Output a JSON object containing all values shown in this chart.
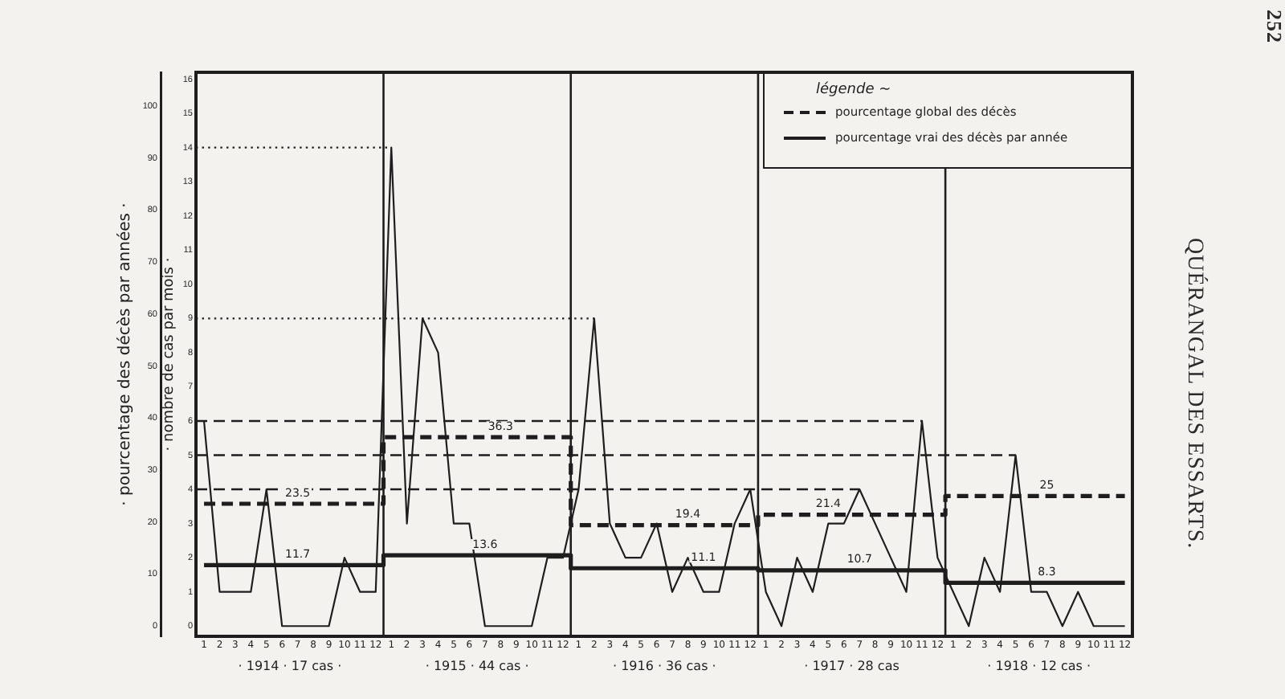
{
  "chart_data": {
    "type": "line",
    "ylabel": "· nombre de cas par mois ·",
    "y2label": "· pourcentage des décès par années ·",
    "legend_title": "légende ~",
    "legend": "top right",
    "marker": "none",
    "x": [
      "1914-01",
      "1914-02",
      "1914-03",
      "1914-04",
      "1914-05",
      "1914-06",
      "1914-07",
      "1914-08",
      "1914-09",
      "1914-10",
      "1914-11",
      "1914-12",
      "1915-01",
      "1915-02",
      "1915-03",
      "1915-04",
      "1915-05",
      "1915-06",
      "1915-07",
      "1915-08",
      "1915-09",
      "1915-10",
      "1915-11",
      "1915-12",
      "1916-01",
      "1916-02",
      "1916-03",
      "1916-04",
      "1916-05",
      "1916-06",
      "1916-07",
      "1916-08",
      "1916-09",
      "1916-10",
      "1916-11",
      "1916-12",
      "1917-01",
      "1917-02",
      "1917-03",
      "1917-04",
      "1917-05",
      "1917-06",
      "1917-07",
      "1917-08",
      "1917-09",
      "1917-10",
      "1917-11",
      "1917-12",
      "1918-01",
      "1918-02",
      "1918-03",
      "1918-04",
      "1918-05",
      "1918-06",
      "1918-07",
      "1918-08",
      "1918-09",
      "1918-10",
      "1918-11",
      "1918-12"
    ],
    "xlim": [
      "1913-12-16",
      "1918-12-16"
    ],
    "xticks": [
      {
        "value": "1914-01",
        "label": "1"
      },
      {
        "value": "1914-02",
        "label": "2"
      },
      {
        "value": "1914-03",
        "label": "3"
      },
      {
        "value": "1914-04",
        "label": "4"
      },
      {
        "value": "1914-05",
        "label": "5"
      },
      {
        "value": "1914-06",
        "label": "6"
      },
      {
        "value": "1914-07",
        "label": "7"
      },
      {
        "value": "1914-08",
        "label": "8"
      },
      {
        "value": "1914-09",
        "label": "9"
      },
      {
        "value": "1914-10",
        "label": "10"
      },
      {
        "value": "1914-11",
        "label": "11"
      },
      {
        "value": "1914-12",
        "label": "12"
      },
      {
        "value": "1915-01",
        "label": "1"
      },
      {
        "value": "1915-02",
        "label": "2"
      },
      {
        "value": "1915-03",
        "label": "3"
      },
      {
        "value": "1915-04",
        "label": "4"
      },
      {
        "value": "1915-05",
        "label": "5"
      },
      {
        "value": "1915-06",
        "label": "6"
      },
      {
        "value": "1915-07",
        "label": "7"
      },
      {
        "value": "1915-08",
        "label": "8"
      },
      {
        "value": "1915-09",
        "label": "9"
      },
      {
        "value": "1915-10",
        "label": "10"
      },
      {
        "value": "1915-11",
        "label": "11"
      },
      {
        "value": "1915-12",
        "label": "12"
      },
      {
        "value": "1916-01",
        "label": "1"
      },
      {
        "value": "1916-02",
        "label": "2"
      },
      {
        "value": "1916-03",
        "label": "3"
      },
      {
        "value": "1916-04",
        "label": "4"
      },
      {
        "value": "1916-05",
        "label": "5"
      },
      {
        "value": "1916-06",
        "label": "6"
      },
      {
        "value": "1916-07",
        "label": "7"
      },
      {
        "value": "1916-08",
        "label": "8"
      },
      {
        "value": "1916-09",
        "label": "9"
      },
      {
        "value": "1916-10",
        "label": "10"
      },
      {
        "value": "1916-11",
        "label": "11"
      },
      {
        "value": "1916-12",
        "label": "12"
      },
      {
        "value": "1917-01",
        "label": "1"
      },
      {
        "value": "1917-02",
        "label": "2"
      },
      {
        "value": "1917-03",
        "label": "3"
      },
      {
        "value": "1917-04",
        "label": "4"
      },
      {
        "value": "1917-05",
        "label": "5"
      },
      {
        "value": "1917-06",
        "label": "6"
      },
      {
        "value": "1917-07",
        "label": "7"
      },
      {
        "value": "1917-08",
        "label": "8"
      },
      {
        "value": "1917-09",
        "label": "9"
      },
      {
        "value": "1917-10",
        "label": "10"
      },
      {
        "value": "1917-11",
        "label": "11"
      },
      {
        "value": "1917-12",
        "label": "12"
      },
      {
        "value": "1918-01",
        "label": "1"
      },
      {
        "value": "1918-02",
        "label": "2"
      },
      {
        "value": "1918-03",
        "label": "3"
      },
      {
        "value": "1918-04",
        "label": "4"
      },
      {
        "value": "1918-05",
        "label": "5"
      },
      {
        "value": "1918-06",
        "label": "6"
      },
      {
        "value": "1918-07",
        "label": "7"
      },
      {
        "value": "1918-08",
        "label": "8"
      },
      {
        "value": "1918-09",
        "label": "9"
      },
      {
        "value": "1918-10",
        "label": "10"
      },
      {
        "value": "1918-11",
        "label": "11"
      },
      {
        "value": "1918-12",
        "label": "12"
      }
    ],
    "series": [
      {
        "type": "line",
        "color": "#1e1e1e",
        "line_style": "solid",
        "values": [
          6,
          1,
          1,
          1,
          4,
          0,
          0,
          0,
          0,
          2,
          1,
          1,
          14,
          3,
          9,
          8,
          3,
          3,
          0,
          0,
          0,
          0,
          2,
          2,
          4,
          9,
          3,
          2,
          2,
          3,
          1,
          2,
          1,
          1,
          3,
          4,
          1,
          0,
          2,
          1,
          3,
          3,
          4,
          3,
          2,
          1,
          6,
          2,
          1,
          0,
          2,
          1,
          5,
          1,
          1,
          0,
          1,
          0,
          0,
          0
        ]
      },
      {
        "type": "step",
        "name": "pourcentage global des décès",
        "color": "#1e1e1e",
        "axis": "y2",
        "line_style": "dashed",
        "values": [
          23.5,
          23.5,
          23.5,
          23.5,
          23.5,
          23.5,
          23.5,
          23.5,
          23.5,
          23.5,
          23.5,
          23.5,
          36.3,
          36.3,
          36.3,
          36.3,
          36.3,
          36.3,
          36.3,
          36.3,
          36.3,
          36.3,
          36.3,
          36.3,
          19.4,
          19.4,
          19.4,
          19.4,
          19.4,
          19.4,
          19.4,
          19.4,
          19.4,
          19.4,
          19.4,
          19.4,
          21.4,
          21.4,
          21.4,
          21.4,
          21.4,
          21.4,
          21.4,
          21.4,
          21.4,
          21.4,
          21.4,
          21.4,
          25,
          25,
          25,
          25,
          25,
          25,
          25,
          25,
          25,
          25,
          25,
          25
        ],
        "value_labels": [
          null,
          null,
          null,
          null,
          null,
          null,
          "23.5",
          null,
          null,
          null,
          null,
          null,
          null,
          null,
          null,
          null,
          null,
          null,
          null,
          "36.3",
          null,
          null,
          null,
          null,
          null,
          null,
          null,
          null,
          null,
          null,
          null,
          "19.4",
          null,
          null,
          null,
          null,
          null,
          null,
          null,
          null,
          "21.4",
          null,
          null,
          null,
          null,
          null,
          null,
          null,
          null,
          null,
          null,
          null,
          null,
          null,
          "25",
          null,
          null,
          null,
          null,
          null
        ]
      },
      {
        "type": "step",
        "name": "pourcentage vrai des décès par année",
        "color": "#1e1e1e",
        "axis": "y2",
        "line_style": "solid",
        "values": [
          11.7,
          11.7,
          11.7,
          11.7,
          11.7,
          11.7,
          11.7,
          11.7,
          11.7,
          11.7,
          11.7,
          11.7,
          13.6,
          13.6,
          13.6,
          13.6,
          13.6,
          13.6,
          13.6,
          13.6,
          13.6,
          13.6,
          13.6,
          13.6,
          11.1,
          11.1,
          11.1,
          11.1,
          11.1,
          11.1,
          11.1,
          11.1,
          11.1,
          11.1,
          11.1,
          11.1,
          10.7,
          10.7,
          10.7,
          10.7,
          10.7,
          10.7,
          10.7,
          10.7,
          10.7,
          10.7,
          10.7,
          10.7,
          8.3,
          8.3,
          8.3,
          8.3,
          8.3,
          8.3,
          8.3,
          8.3,
          8.3,
          8.3,
          8.3,
          8.3
        ],
        "value_labels": [
          null,
          null,
          null,
          null,
          null,
          null,
          "11.7",
          null,
          null,
          null,
          null,
          null,
          null,
          null,
          null,
          null,
          null,
          null,
          "13.6",
          null,
          null,
          null,
          null,
          null,
          null,
          null,
          null,
          null,
          null,
          null,
          null,
          null,
          "11.1",
          null,
          null,
          null,
          null,
          null,
          null,
          null,
          null,
          null,
          "10.7",
          null,
          null,
          null,
          null,
          null,
          null,
          null,
          null,
          null,
          null,
          null,
          "8.3",
          null,
          null,
          null,
          null,
          null
        ]
      }
    ],
    "ylim": [
      -0.3,
      16.2
    ],
    "yticks": [
      0,
      1,
      2,
      3,
      4,
      5,
      6,
      7,
      8,
      9,
      10,
      11,
      12,
      13,
      14,
      15,
      16
    ],
    "y2lim": [
      -2,
      106.5
    ],
    "y2ticks": [
      0,
      10,
      20,
      30,
      40,
      50,
      60,
      70,
      80,
      90,
      100
    ],
    "ref_lines": [
      {
        "axis": "y",
        "value": 14,
        "color": "#1e1e1e",
        "line_style": "dotted"
      },
      {
        "axis": "y",
        "value": 9,
        "color": "#1e1e1e",
        "line_style": "dotted"
      },
      {
        "axis": "y",
        "value": 6,
        "color": "#1e1e1e",
        "line_style": "dashed"
      },
      {
        "axis": "y",
        "value": 5,
        "color": "#1e1e1e",
        "line_style": "dashed"
      },
      {
        "axis": "y",
        "value": 4,
        "color": "#1e1e1e",
        "line_style": "dashed"
      }
    ],
    "annotations": [
      "· 1914 · 17 cas ·",
      "· 1915 · 44 cas ·",
      "· 1916 · 36 cas ·",
      "· 1917 · 28 cas",
      "· 1918 · 12 cas ·",
      "252",
      "QUÉRANGAL DES ESSARTS."
    ]
  }
}
